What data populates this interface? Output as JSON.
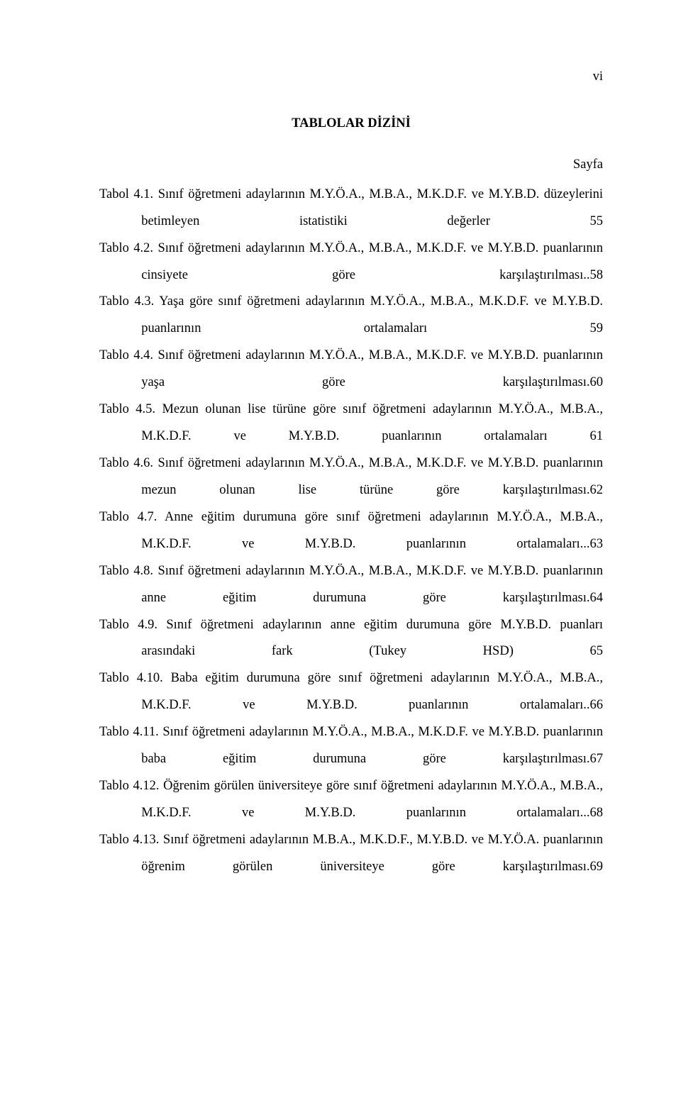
{
  "page_number_label": "vi",
  "heading": "TABLOLAR DİZİNİ",
  "page_column_label": "Sayfa",
  "entries": [
    "Tabol 4.1. Sınıf öğretmeni adaylarının M.Y.Ö.A., M.B.A., M.K.D.F. ve M.Y.B.D. düzeylerini betimleyen istatistiki değerler 55",
    "Tablo 4.2. Sınıf öğretmeni adaylarının M.Y.Ö.A., M.B.A., M.K.D.F. ve M.Y.B.D. puanlarının cinsiyete göre karşılaştırılması..58",
    "Tablo 4.3. Yaşa göre sınıf öğretmeni adaylarının M.Y.Ö.A., M.B.A., M.K.D.F. ve M.Y.B.D. puanlarının ortalamaları 59",
    "Tablo 4.4. Sınıf öğretmeni adaylarının M.Y.Ö.A., M.B.A., M.K.D.F. ve M.Y.B.D. puanlarının yaşa göre karşılaştırılması.60",
    "Tablo 4.5. Mezun olunan lise türüne göre sınıf öğretmeni adaylarının M.Y.Ö.A., M.B.A., M.K.D.F. ve M.Y.B.D. puanlarının ortalamaları 61",
    "Tablo 4.6. Sınıf öğretmeni adaylarının M.Y.Ö.A., M.B.A., M.K.D.F. ve M.Y.B.D. puanlarının mezun olunan lise türüne göre karşılaştırılması.62",
    "Tablo 4.7. Anne eğitim durumuna göre sınıf öğretmeni adaylarının M.Y.Ö.A., M.B.A., M.K.D.F. ve M.Y.B.D. puanlarının ortalamaları...63",
    "Tablo 4.8. Sınıf öğretmeni adaylarının M.Y.Ö.A., M.B.A., M.K.D.F. ve M.Y.B.D. puanlarının anne eğitim durumuna göre karşılaştırılması.64",
    "Tablo 4.9. Sınıf öğretmeni adaylarının anne eğitim durumuna göre M.Y.B.D. puanları arasındaki fark (Tukey HSD) 65",
    "Tablo 4.10. Baba eğitim durumuna göre sınıf öğretmeni adaylarının M.Y.Ö.A., M.B.A., M.K.D.F. ve M.Y.B.D. puanlarının ortalamaları..66",
    "Tablo 4.11. Sınıf öğretmeni adaylarının M.Y.Ö.A., M.B.A., M.K.D.F. ve M.Y.B.D. puanlarının baba eğitim durumuna göre karşılaştırılması.67",
    "Tablo 4.12. Öğrenim görülen üniversiteye göre sınıf öğretmeni adaylarının M.Y.Ö.A., M.B.A., M.K.D.F. ve M.Y.B.D. puanlarının ortalamaları...68",
    "Tablo 4.13. Sınıf öğretmeni adaylarının M.B.A., M.K.D.F., M.Y.B.D. ve M.Y.Ö.A. puanlarının öğrenim görülen üniversiteye göre karşılaştırılması.69"
  ],
  "colors": {
    "background": "#ffffff",
    "text": "#000000"
  },
  "typography": {
    "font_family": "Times New Roman",
    "font_size_pt": 12,
    "line_height": 2.0
  }
}
